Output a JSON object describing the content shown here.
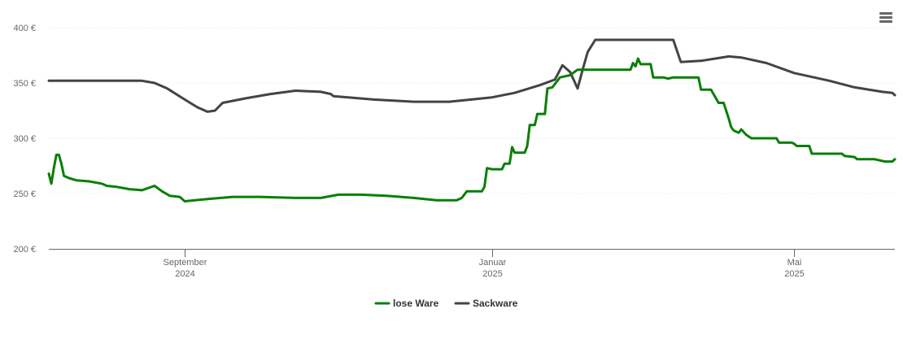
{
  "chart_data": {
    "type": "line",
    "y_unit": "€",
    "ylim": [
      200,
      400
    ],
    "y_ticks": [
      {
        "value": 200,
        "label": "200 €"
      },
      {
        "value": 250,
        "label": "250 €"
      },
      {
        "value": 300,
        "label": "300 €"
      },
      {
        "value": 350,
        "label": "350 €"
      },
      {
        "value": 400,
        "label": "400 €"
      }
    ],
    "xlim": [
      "2024-07-09",
      "2025-06-10"
    ],
    "x_ticks": [
      {
        "date": "2024-09-01",
        "label": "September",
        "sublabel": "2024"
      },
      {
        "date": "2025-01-01",
        "label": "Januar",
        "sublabel": "2025"
      },
      {
        "date": "2025-05-01",
        "label": "Mai",
        "sublabel": "2025"
      }
    ],
    "grid": "horizontal-dotted",
    "legend_position": "bottom-center",
    "series": [
      {
        "name": "lose Ware",
        "color": "#087f06",
        "points": [
          [
            "2024-07-09",
            268
          ],
          [
            "2024-07-10",
            259
          ],
          [
            "2024-07-11",
            273
          ],
          [
            "2024-07-12",
            285
          ],
          [
            "2024-07-13",
            285
          ],
          [
            "2024-07-14",
            277
          ],
          [
            "2024-07-15",
            266
          ],
          [
            "2024-07-17",
            264
          ],
          [
            "2024-07-20",
            262
          ],
          [
            "2024-07-25",
            261
          ],
          [
            "2024-07-30",
            259
          ],
          [
            "2024-08-01",
            257
          ],
          [
            "2024-08-05",
            256
          ],
          [
            "2024-08-10",
            254
          ],
          [
            "2024-08-15",
            253
          ],
          [
            "2024-08-20",
            257
          ],
          [
            "2024-08-23",
            252
          ],
          [
            "2024-08-26",
            248
          ],
          [
            "2024-08-30",
            247
          ],
          [
            "2024-09-01",
            243
          ],
          [
            "2024-09-10",
            245
          ],
          [
            "2024-09-20",
            247
          ],
          [
            "2024-10-01",
            247
          ],
          [
            "2024-10-15",
            246
          ],
          [
            "2024-10-25",
            246
          ],
          [
            "2024-11-01",
            249
          ],
          [
            "2024-11-10",
            249
          ],
          [
            "2024-11-20",
            248
          ],
          [
            "2024-12-01",
            246
          ],
          [
            "2024-12-10",
            244
          ],
          [
            "2024-12-18",
            244
          ],
          [
            "2024-12-20",
            246
          ],
          [
            "2024-12-22",
            252
          ],
          [
            "2024-12-28",
            252
          ],
          [
            "2024-12-29",
            256
          ],
          [
            "2024-12-30",
            273
          ],
          [
            "2025-01-01",
            272
          ],
          [
            "2025-01-05",
            272
          ],
          [
            "2025-01-06",
            277
          ],
          [
            "2025-01-08",
            277
          ],
          [
            "2025-01-09",
            292
          ],
          [
            "2025-01-10",
            287
          ],
          [
            "2025-01-14",
            287
          ],
          [
            "2025-01-15",
            293
          ],
          [
            "2025-01-16",
            312
          ],
          [
            "2025-01-18",
            312
          ],
          [
            "2025-01-19",
            322
          ],
          [
            "2025-01-22",
            322
          ],
          [
            "2025-01-23",
            345
          ],
          [
            "2025-01-25",
            346
          ],
          [
            "2025-01-28",
            355
          ],
          [
            "2025-02-01",
            357
          ],
          [
            "2025-02-04",
            362
          ],
          [
            "2025-02-10",
            362
          ],
          [
            "2025-02-20",
            362
          ],
          [
            "2025-02-25",
            362
          ],
          [
            "2025-02-26",
            368
          ],
          [
            "2025-02-27",
            365
          ],
          [
            "2025-02-28",
            372
          ],
          [
            "2025-03-01",
            367
          ],
          [
            "2025-03-05",
            367
          ],
          [
            "2025-03-06",
            355
          ],
          [
            "2025-03-10",
            355
          ],
          [
            "2025-03-12",
            354
          ],
          [
            "2025-03-14",
            355
          ],
          [
            "2025-03-20",
            355
          ],
          [
            "2025-03-24",
            355
          ],
          [
            "2025-03-25",
            344
          ],
          [
            "2025-03-29",
            344
          ],
          [
            "2025-04-01",
            332
          ],
          [
            "2025-04-03",
            332
          ],
          [
            "2025-04-05",
            318
          ],
          [
            "2025-04-06",
            310
          ],
          [
            "2025-04-07",
            307
          ],
          [
            "2025-04-09",
            305
          ],
          [
            "2025-04-10",
            308
          ],
          [
            "2025-04-12",
            303
          ],
          [
            "2025-04-14",
            300
          ],
          [
            "2025-04-24",
            300
          ],
          [
            "2025-04-25",
            296
          ],
          [
            "2025-04-30",
            296
          ],
          [
            "2025-05-01",
            295
          ],
          [
            "2025-05-02",
            293
          ],
          [
            "2025-05-07",
            293
          ],
          [
            "2025-05-08",
            286
          ],
          [
            "2025-05-20",
            286
          ],
          [
            "2025-05-21",
            284
          ],
          [
            "2025-05-25",
            283
          ],
          [
            "2025-05-26",
            281
          ],
          [
            "2025-06-02",
            281
          ],
          [
            "2025-06-06",
            279
          ],
          [
            "2025-06-09",
            279
          ],
          [
            "2025-06-10",
            281
          ]
        ]
      },
      {
        "name": "Sackware",
        "color": "#434348",
        "points": [
          [
            "2024-07-09",
            352
          ],
          [
            "2024-08-15",
            352
          ],
          [
            "2024-08-20",
            350
          ],
          [
            "2024-08-25",
            345
          ],
          [
            "2024-09-01",
            335
          ],
          [
            "2024-09-06",
            328
          ],
          [
            "2024-09-10",
            324
          ],
          [
            "2024-09-13",
            325
          ],
          [
            "2024-09-16",
            332
          ],
          [
            "2024-09-25",
            336
          ],
          [
            "2024-10-05",
            340
          ],
          [
            "2024-10-15",
            343
          ],
          [
            "2024-10-25",
            342
          ],
          [
            "2024-10-29",
            340
          ],
          [
            "2024-10-30",
            338
          ],
          [
            "2024-11-15",
            335
          ],
          [
            "2024-12-01",
            333
          ],
          [
            "2024-12-15",
            333
          ],
          [
            "2025-01-01",
            337
          ],
          [
            "2025-01-10",
            341
          ],
          [
            "2025-01-20",
            348
          ],
          [
            "2025-01-26",
            353
          ],
          [
            "2025-01-29",
            366
          ],
          [
            "2025-02-01",
            360
          ],
          [
            "2025-02-04",
            345
          ],
          [
            "2025-02-06",
            362
          ],
          [
            "2025-02-08",
            378
          ],
          [
            "2025-02-11",
            389
          ],
          [
            "2025-03-01",
            389
          ],
          [
            "2025-03-10",
            389
          ],
          [
            "2025-03-14",
            389
          ],
          [
            "2025-03-17",
            369
          ],
          [
            "2025-03-25",
            370
          ],
          [
            "2025-04-05",
            374
          ],
          [
            "2025-04-10",
            373
          ],
          [
            "2025-04-20",
            368
          ],
          [
            "2025-05-01",
            359
          ],
          [
            "2025-05-15",
            352
          ],
          [
            "2025-05-25",
            346
          ],
          [
            "2025-06-05",
            342
          ],
          [
            "2025-06-09",
            341
          ],
          [
            "2025-06-10",
            339
          ]
        ]
      }
    ]
  }
}
